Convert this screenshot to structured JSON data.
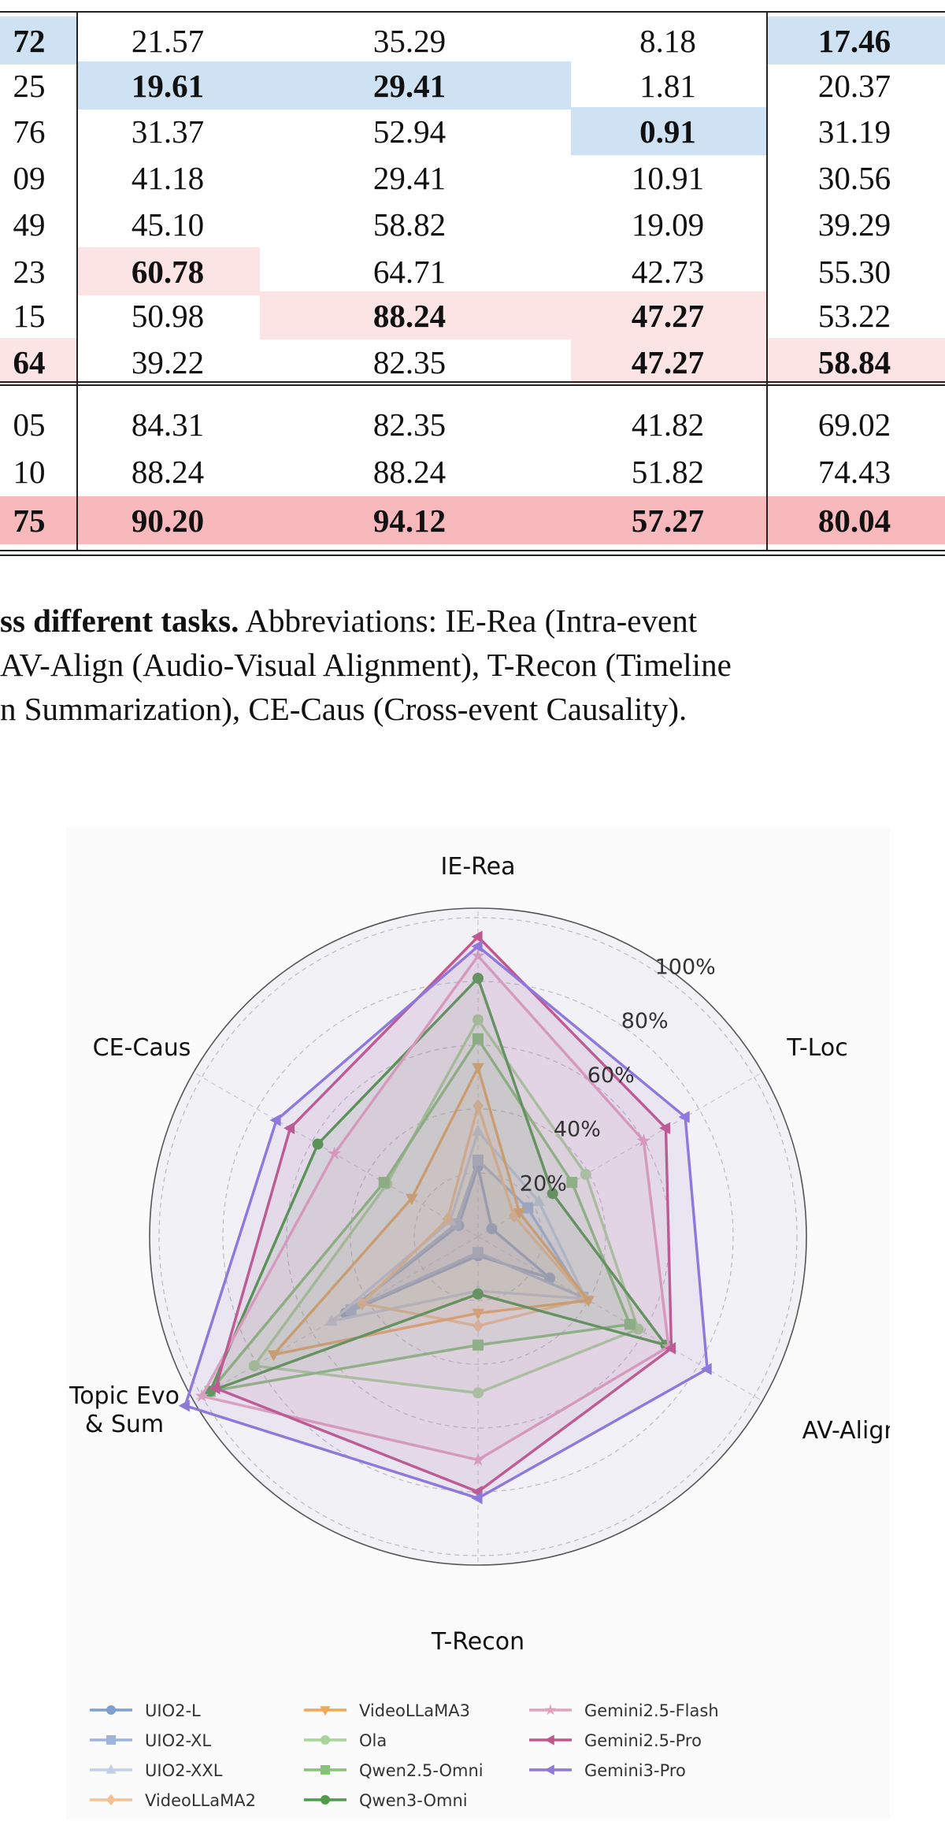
{
  "table": {
    "rows": [
      {
        "group": 1,
        "c0": "72",
        "c1": "21.57",
        "c2": "35.29",
        "c3": "8.18",
        "c4": "17.46"
      },
      {
        "group": 1,
        "c0": "25",
        "c1": "19.61",
        "c2": "29.41",
        "c3": "1.81",
        "c4": "20.37"
      },
      {
        "group": 1,
        "c0": "76",
        "c1": "31.37",
        "c2": "52.94",
        "c3": "0.91",
        "c4": "31.19"
      },
      {
        "group": 1,
        "c0": "09",
        "c1": "41.18",
        "c2": "29.41",
        "c3": "10.91",
        "c4": "30.56"
      },
      {
        "group": 1,
        "c0": "49",
        "c1": "45.10",
        "c2": "58.82",
        "c3": "19.09",
        "c4": "39.29"
      },
      {
        "group": 1,
        "c0": "23",
        "c1": "60.78",
        "c2": "64.71",
        "c3": "42.73",
        "c4": "55.30"
      },
      {
        "group": 1,
        "c0": "15",
        "c1": "50.98",
        "c2": "88.24",
        "c3": "47.27",
        "c4": "53.22"
      },
      {
        "group": 1,
        "c0": "64",
        "c1": "39.22",
        "c2": "82.35",
        "c3": "47.27",
        "c4": "58.84"
      },
      {
        "group": 2,
        "c0": "05",
        "c1": "84.31",
        "c2": "82.35",
        "c3": "41.82",
        "c4": "69.02"
      },
      {
        "group": 2,
        "c0": "10",
        "c1": "88.24",
        "c2": "88.24",
        "c3": "51.82",
        "c4": "74.43"
      },
      {
        "group": 2,
        "c0": "75",
        "c1": "90.20",
        "c2": "94.12",
        "c3": "57.27",
        "c4": "80.04"
      }
    ],
    "highlights": [
      {
        "row": 0,
        "col": 0,
        "color": "#cfe2f3",
        "bold": true
      },
      {
        "row": 0,
        "col": 4,
        "color": "#cfe2f3",
        "bold": true
      },
      {
        "row": 1,
        "col": 1,
        "color": "#cfe2f3",
        "bold": true
      },
      {
        "row": 1,
        "col": 2,
        "color": "#cfe2f3",
        "bold": true
      },
      {
        "row": 2,
        "col": 3,
        "color": "#cfe2f3",
        "bold": true
      },
      {
        "row": 5,
        "col": 1,
        "color": "#fde4e4",
        "bold": true
      },
      {
        "row": 6,
        "col": 2,
        "color": "#fde4e4",
        "bold": true
      },
      {
        "row": 6,
        "col": 3,
        "color": "#fde4e4",
        "bold": true
      },
      {
        "row": 7,
        "col": 0,
        "color": "#fde4e4",
        "bold": true
      },
      {
        "row": 7,
        "col": 3,
        "color": "#fde4e4",
        "bold": true
      },
      {
        "row": 7,
        "col": 4,
        "color": "#fde4e4",
        "bold": true
      },
      {
        "row": 10,
        "col": 0,
        "color": "#f8b9bd",
        "bold": true
      },
      {
        "row": 10,
        "col": 1,
        "color": "#f8b9bd",
        "bold": true
      },
      {
        "row": 10,
        "col": 2,
        "color": "#f8b9bd",
        "bold": true
      },
      {
        "row": 10,
        "col": 3,
        "color": "#f8b9bd",
        "bold": true
      },
      {
        "row": 10,
        "col": 4,
        "color": "#f8b9bd",
        "bold": true
      }
    ]
  },
  "caption": {
    "line1_bold": "ss different tasks.",
    "line1_rest": " Abbreviations: IE-Rea (Intra-event",
    "line2": "AV-Align (Audio-Visual Alignment), T-Recon (Timeline",
    "line3": "n Summarization), CE-Caus (Cross-event Causality)."
  },
  "chart_data": {
    "type": "radar",
    "axes": [
      "IE-Rea",
      "T-Loc",
      "AV-Align",
      "T-Recon",
      "Topic Evo\n& Sum",
      "CE-Caus"
    ],
    "axis_label_lines": {
      "ie_rea": "IE-Rea",
      "t_loc": "T-Loc",
      "av_align": "AV-Align",
      "t_recon": "T-Recon",
      "topic_1": "Topic Evo",
      "topic_2": "& Sum",
      "ce_caus": "CE-Caus"
    },
    "rlim": [
      0,
      100
    ],
    "radial_ticks": [
      20,
      40,
      60,
      80,
      100
    ],
    "radial_tick_labels": [
      "20%",
      "40%",
      "60%",
      "80%",
      "100%"
    ],
    "grid": true,
    "series": [
      {
        "name": "UIO2-L",
        "color": "#7f9fcf",
        "marker": "circle",
        "values": [
          22,
          5,
          26,
          6,
          48,
          7
        ]
      },
      {
        "name": "UIO2-XL",
        "color": "#9fb4dc",
        "marker": "square",
        "values": [
          24,
          18,
          38,
          5,
          46,
          8
        ]
      },
      {
        "name": "UIO2-XXL",
        "color": "#c2cfe8",
        "marker": "triangle-up",
        "values": [
          33,
          22,
          39,
          17,
          53,
          10
        ]
      },
      {
        "name": "VideoLLaMA2",
        "color": "#f5c192",
        "marker": "diamond",
        "values": [
          41,
          13,
          39,
          28,
          42,
          11
        ]
      },
      {
        "name": "VideoLLaMA3",
        "color": "#eda85a",
        "marker": "triangle-down",
        "values": [
          53,
          15,
          40,
          24,
          74,
          24
        ]
      },
      {
        "name": "Ola",
        "color": "#a8d39a",
        "marker": "circle",
        "values": [
          68,
          39,
          58,
          49,
          81,
          33
        ]
      },
      {
        "name": "Qwen2.5-Omni",
        "color": "#86c27a",
        "marker": "square",
        "values": [
          62,
          34,
          55,
          34,
          97,
          34
        ]
      },
      {
        "name": "Qwen3-Omni",
        "color": "#4e9c48",
        "marker": "circle",
        "values": [
          81,
          27,
          68,
          18,
          97,
          58
        ]
      },
      {
        "name": "Gemini2.5-Flash",
        "color": "#e0a4bf",
        "marker": "star",
        "values": [
          88,
          60,
          69,
          70,
          100,
          52
        ]
      },
      {
        "name": "Gemini2.5-Pro",
        "color": "#c1588d",
        "marker": "triangle-left",
        "values": [
          94,
          68,
          70,
          80,
          95,
          68
        ]
      },
      {
        "name": "Gemini3-Pro",
        "color": "#8f78dc",
        "marker": "triangle-left",
        "values": [
          91,
          75,
          83,
          82,
          106,
          73
        ]
      }
    ],
    "legend_placement": "bottom",
    "legend_columns": [
      [
        "UIO2-L",
        "UIO2-XL",
        "UIO2-XXL",
        "VideoLLaMA2"
      ],
      [
        "VideoLLaMA3",
        "Ola",
        "Qwen2.5-Omni",
        "Qwen3-Omni"
      ],
      [
        "Gemini2.5-Flash",
        "Gemini2.5-Pro",
        "Gemini3-Pro"
      ]
    ]
  }
}
